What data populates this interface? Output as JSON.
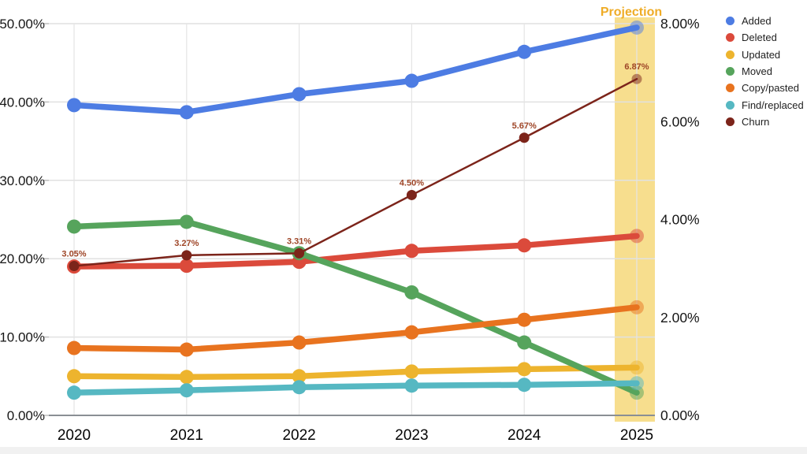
{
  "chart_data": {
    "type": "line",
    "title": "",
    "x_ticks": [
      "2020",
      "2021",
      "2022",
      "2023",
      "2024",
      "2025"
    ],
    "left_axis": {
      "min": 0,
      "max": 50,
      "ticks": [
        "0.00%",
        "10.00%",
        "20.00%",
        "30.00%",
        "40.00%",
        "50.00%"
      ]
    },
    "right_axis": {
      "min": 0,
      "max": 8,
      "ticks": [
        "0.00%",
        "2.00%",
        "4.00%",
        "6.00%",
        "8.00%"
      ]
    },
    "grid": true,
    "legend_position": "right",
    "projection": {
      "label": "Projection",
      "label_color": "#EFAC26",
      "band_color": "#F1C232",
      "band_opacity": 0.55,
      "covers_x": "2025"
    },
    "series": [
      {
        "name": "Added",
        "axis": "left",
        "color": "#4D7CE3",
        "values": [
          39.6,
          38.7,
          41.0,
          42.7,
          46.4,
          49.5
        ]
      },
      {
        "name": "Deleted",
        "axis": "left",
        "color": "#DB4A3B",
        "values": [
          19.0,
          19.1,
          19.6,
          21.0,
          21.7,
          22.9
        ]
      },
      {
        "name": "Updated",
        "axis": "left",
        "color": "#EDB42E",
        "values": [
          5.0,
          4.9,
          5.0,
          5.6,
          5.9,
          6.1
        ]
      },
      {
        "name": "Moved",
        "axis": "left",
        "color": "#56A45C",
        "values": [
          24.1,
          24.7,
          20.7,
          15.7,
          9.3,
          2.9
        ]
      },
      {
        "name": "Copy/pasted",
        "axis": "left",
        "color": "#E8731F",
        "values": [
          8.6,
          8.4,
          9.3,
          10.6,
          12.2,
          13.8
        ]
      },
      {
        "name": "Find/replaced",
        "axis": "left",
        "color": "#56B8C2",
        "values": [
          2.9,
          3.2,
          3.6,
          3.8,
          3.9,
          4.1
        ]
      },
      {
        "name": "Churn",
        "axis": "right",
        "color": "#7C241A",
        "thin": true,
        "values": [
          3.05,
          3.27,
          3.31,
          4.5,
          5.67,
          6.87
        ],
        "point_labels": [
          "3.05%",
          "3.27%",
          "3.31%",
          "4.50%",
          "5.67%",
          "6.87%"
        ],
        "label_color": "#9E4527"
      }
    ]
  },
  "legend": {
    "items": [
      "Added",
      "Deleted",
      "Updated",
      "Moved",
      "Copy/pasted",
      "Find/replaced",
      "Churn"
    ]
  }
}
